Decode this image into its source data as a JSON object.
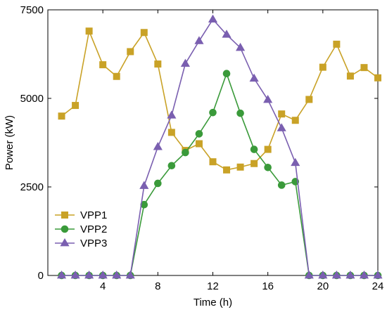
{
  "chart_data": {
    "type": "line",
    "xlabel": "Time (h)",
    "ylabel": "Power (kW)",
    "xlim": [
      0,
      24
    ],
    "ylim": [
      0,
      7500
    ],
    "x_ticks": [
      4,
      8,
      12,
      16,
      20,
      24
    ],
    "y_ticks": [
      0,
      2500,
      5000,
      7500
    ],
    "x_tick_labels": [
      "4",
      "8",
      "12",
      "16",
      "20",
      "24"
    ],
    "y_tick_labels": [
      "0",
      "2500",
      "5000",
      "7500"
    ],
    "grid": false,
    "legend_position": "bottom-left",
    "x": [
      1,
      2,
      3,
      4,
      5,
      6,
      7,
      8,
      9,
      10,
      11,
      12,
      13,
      14,
      15,
      16,
      17,
      18,
      19,
      20,
      21,
      22,
      23,
      24
    ],
    "series": [
      {
        "name": "VPP1",
        "color": "#c9a227",
        "marker": "square",
        "values": [
          4500,
          4800,
          6900,
          5950,
          5620,
          6320,
          6860,
          5970,
          4040,
          3530,
          3720,
          3210,
          2980,
          3060,
          3160,
          3560,
          4560,
          4380,
          4970,
          5880,
          6530,
          5630,
          5870,
          5580
        ]
      },
      {
        "name": "VPP2",
        "color": "#3a9a3a",
        "marker": "circle",
        "values": [
          0,
          0,
          0,
          0,
          0,
          0,
          2000,
          2600,
          3100,
          3470,
          4000,
          4600,
          5700,
          4580,
          3560,
          3050,
          2550,
          2650,
          0,
          0,
          0,
          0,
          0,
          0
        ]
      },
      {
        "name": "VPP3",
        "color": "#7a5fb0",
        "marker": "triangle",
        "values": [
          0,
          0,
          0,
          0,
          0,
          0,
          2530,
          3630,
          4520,
          5980,
          6620,
          7230,
          6800,
          6430,
          5560,
          4960,
          4160,
          3180,
          0,
          0,
          0,
          0,
          0,
          0
        ]
      }
    ]
  }
}
